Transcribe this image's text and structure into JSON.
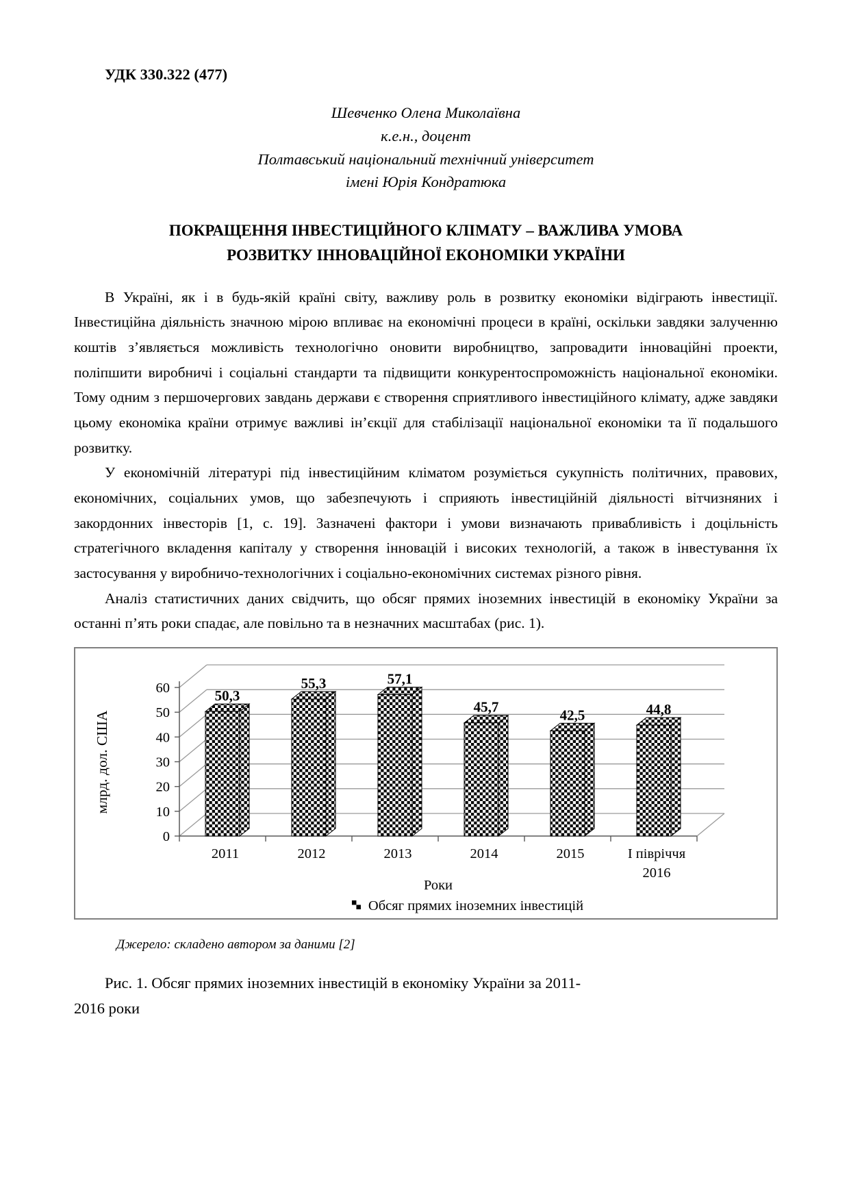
{
  "page": {
    "udc": "УДК 330.322 (477)",
    "authors": [
      "Шевченко Олена Миколаївна",
      "к.е.н., доцент",
      "Полтавський національний технічний університет",
      "імені Юрія Кондратюка"
    ],
    "title_lines": [
      "ПОКРАЩЕННЯ ІНВЕСТИЦІЙНОГО КЛІМАТУ – ВАЖЛИВА УМОВА",
      "РОЗВИТКУ ІННОВАЦІЙНОЇ ЕКОНОМІКИ УКРАЇНИ"
    ],
    "paragraphs": [
      "В Україні, як і в будь-якій країні світу, важливу роль в розвитку економіки відіграють інвестиції. Інвестиційна діяльність значною мірою впливає на економічні процеси в країні, оскільки завдяки залученню коштів з’являється можливість технологічно оновити виробництво, запровадити інноваційні проекти, поліпшити виробничі і соціальні стандарти та підвищити конкурентоспроможність національної економіки. Тому одним з першочергових завдань держави є створення сприятливого інвестиційного клімату, адже завдяки цьому економіка країни отримує важливі ін’єкції для стабілізації національної економіки та її подальшого розвитку.",
      "У економічній літературі під інвестиційним кліматом розуміється сукупність політичних, правових, економічних, соціальних умов, що забезпечують і сприяють інвестиційній діяльності вітчизняних і закордонних інвесторів [1, с. 19]. Зазначені фактори і умови визначають привабливість і доцільність стратегічного вкладення капіталу у створення інновацій і високих технологій, а також в інвестування їх застосування у виробничо-технологічних і соціально-економічних системах різного рівня.",
      "Аналіз статистичних даних свідчить, що обсяг прямих іноземних інвестицій в економіку України за останні п’ять роки спадає, але повільно та в незначних масштабах (рис. 1)."
    ],
    "source_note": "Джерело:  складено автором за даними  [2]",
    "caption_lines": [
      "Рис. 1. Обсяг прямих іноземних інвестицій в економіку України за 2011-",
      "2016 роки"
    ]
  },
  "chart_data": {
    "type": "bar",
    "style": "3d-column-checkerboard",
    "categories": [
      "2011",
      "2012",
      "2013",
      "2014",
      "2015",
      "І півріччя 2016"
    ],
    "values": [
      50.3,
      55.3,
      57.1,
      45.7,
      42.5,
      44.8
    ],
    "value_labels": [
      "50,3",
      "55,3",
      "57,1",
      "45,7",
      "42,5",
      "44,8"
    ],
    "title": "",
    "xlabel": "Роки",
    "ylabel": "млрд. дол. США",
    "ylim": [
      0,
      60
    ],
    "ytick_step": 10,
    "grid": true,
    "legend": [
      "Обсяг прямих іноземних інвестицій"
    ],
    "legend_position": "bottom",
    "colors": {
      "bar_pattern": [
        "#000000",
        "#ffffff"
      ],
      "gridline": "#9a9a9a",
      "axis": "#595959",
      "border": "#808080",
      "text": "#000000"
    }
  }
}
